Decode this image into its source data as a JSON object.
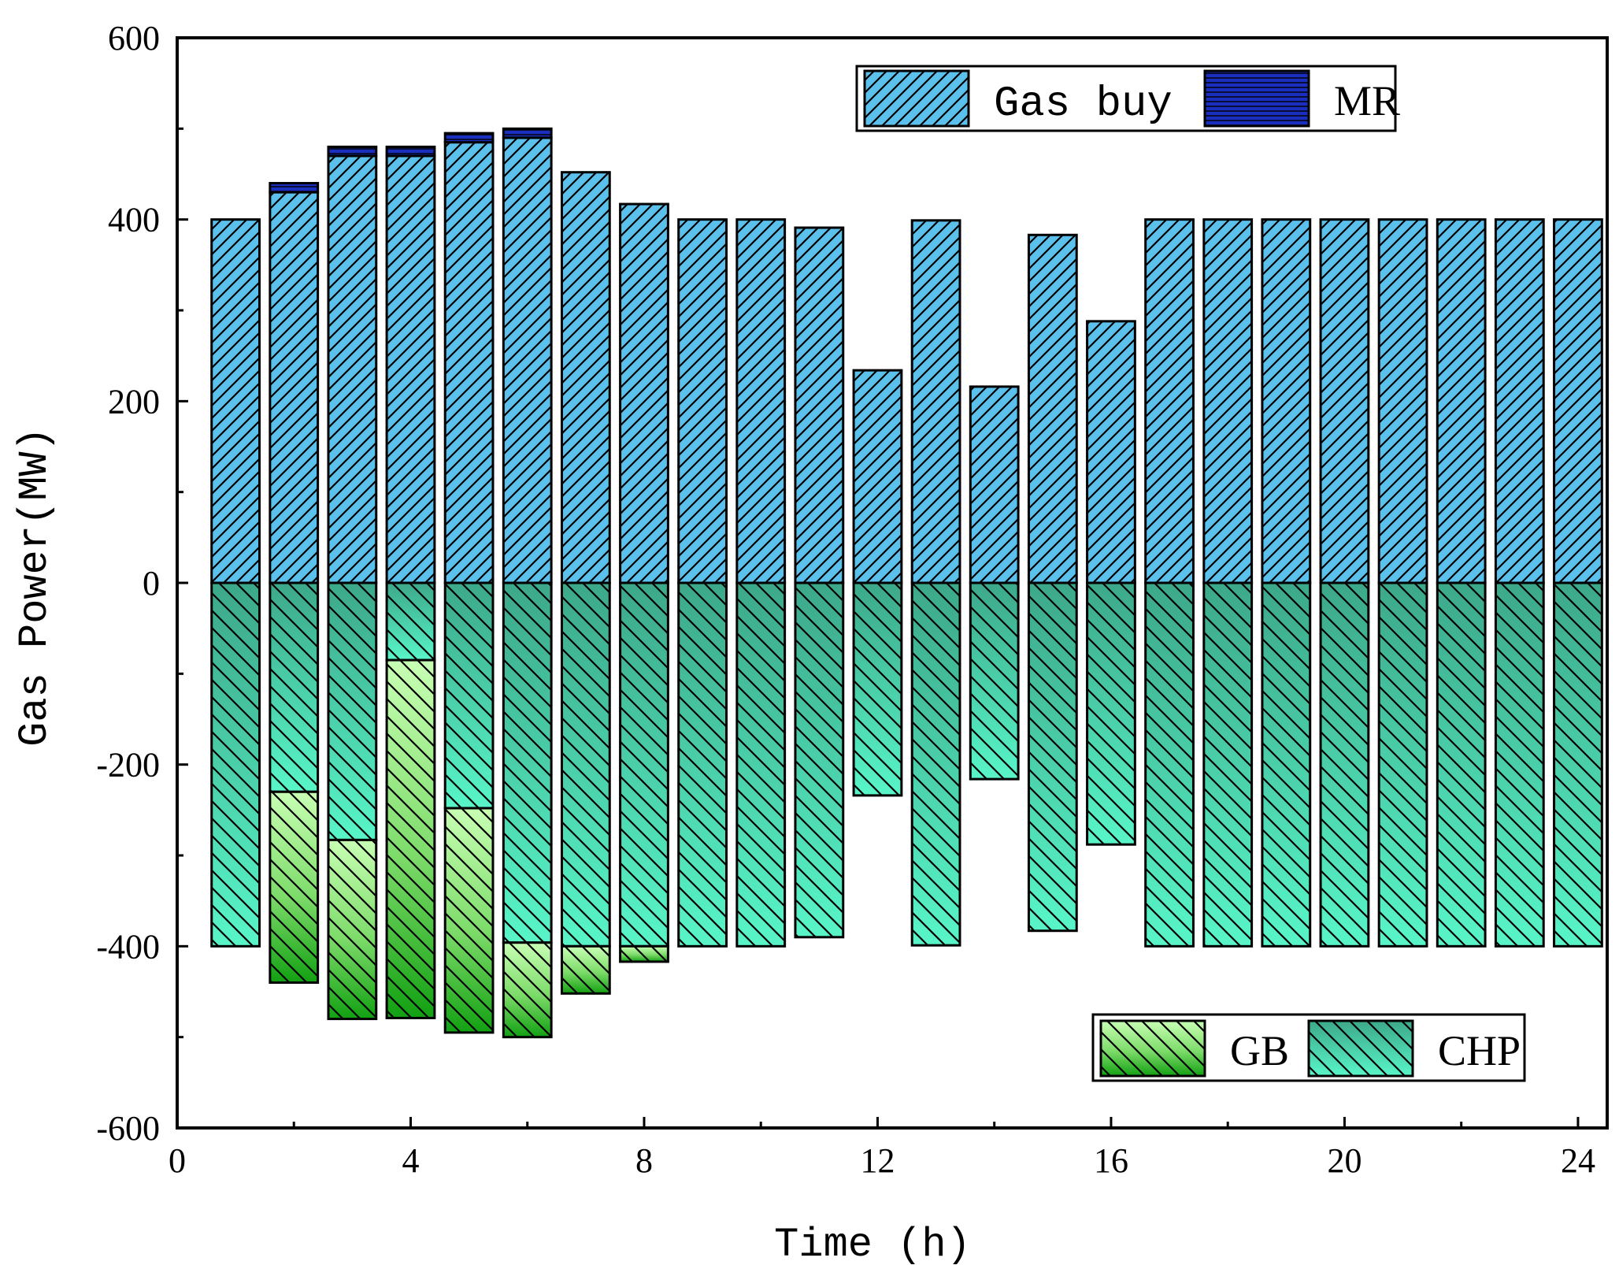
{
  "chart_data": {
    "type": "bar",
    "title": "",
    "xlabel": "Time (h)",
    "ylabel": "Gas Power(MW)",
    "xlim": [
      0,
      24.5
    ],
    "ylim": [
      -600,
      600
    ],
    "grid": false,
    "x": [
      1,
      2,
      3,
      4,
      5,
      6,
      7,
      8,
      9,
      10,
      11,
      12,
      13,
      14,
      15,
      16,
      17,
      18,
      19,
      20,
      21,
      22,
      23,
      24
    ],
    "x_ticks": [
      0,
      4,
      8,
      12,
      16,
      20,
      24
    ],
    "x_tick_labels": [
      "0",
      "4",
      "8",
      "12",
      "16",
      "20",
      "24"
    ],
    "y_ticks": [
      -600,
      -400,
      -200,
      0,
      200,
      400,
      600
    ],
    "y_tick_labels": [
      "-600",
      "-400",
      "-200",
      "0",
      "200",
      "400",
      "600"
    ],
    "stacking": "positive and negative stacks",
    "series": [
      {
        "name": "Gas buy",
        "color": "#5BC0EB",
        "hatch": "forward-diagonal",
        "values": [
          400,
          430,
          470,
          470,
          485,
          490,
          452,
          417,
          400,
          400,
          391,
          234,
          399,
          216,
          383,
          288,
          400,
          400,
          400,
          400,
          400,
          400,
          400,
          400
        ]
      },
      {
        "name": "MR",
        "color": "#1A2FBD",
        "hatch": "horizontal",
        "values": [
          0,
          10,
          10,
          10,
          10,
          10,
          0,
          0,
          0,
          0,
          0,
          0,
          0,
          0,
          0,
          0,
          0,
          0,
          0,
          0,
          0,
          0,
          0,
          0
        ]
      },
      {
        "name": "CHP",
        "color": "#40E0B0",
        "hatch": "back-diagonal",
        "values": [
          -400,
          -230,
          -283,
          -85,
          -248,
          -396,
          -400,
          -400,
          -400,
          -400,
          -390,
          -234,
          -399,
          -216,
          -383,
          -288,
          -400,
          -400,
          -400,
          -400,
          -400,
          -400,
          -400,
          -400
        ]
      },
      {
        "name": "GB",
        "color": "#7DDB6A",
        "hatch": "back-diagonal",
        "values": [
          0,
          -210,
          -197,
          -394,
          -247,
          -104,
          -52,
          -17,
          0,
          0,
          0,
          0,
          0,
          0,
          0,
          0,
          0,
          0,
          0,
          0,
          0,
          0,
          0,
          0
        ]
      }
    ],
    "legends": [
      {
        "position": "top-right",
        "entries": [
          "Gas buy",
          "MR"
        ]
      },
      {
        "position": "bottom-right",
        "entries": [
          "GB",
          "CHP"
        ]
      }
    ]
  }
}
